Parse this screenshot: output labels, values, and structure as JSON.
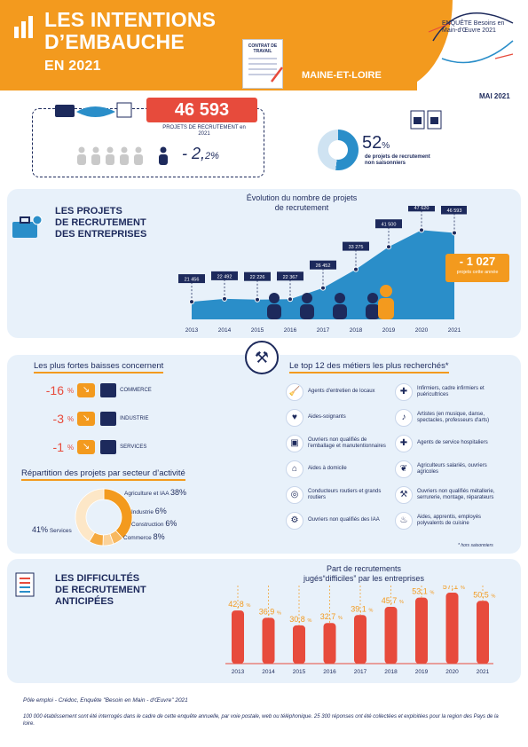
{
  "header": {
    "title_line1": "LES INTENTIONS",
    "title_line2": "D’EMBAUCHE",
    "title_line3": "EN 2021",
    "region": "MAINE-ET-LOIRE",
    "doc_label": "CONTRAT DE TRAVAIL",
    "logo_text": "ENQUÊTE Besoins en Main-d'Œuvre 2021",
    "date": "MAI 2021"
  },
  "key_figures": {
    "projects_value": "46 593",
    "projects_label": "PROJETS DE RECRUTEMENT en 2021",
    "change_prefix": "- 2,",
    "change_suffix": "2%",
    "seasonal_pct": "52",
    "seasonal_unit": "%",
    "seasonal_label_l1": "de projets de recrutement",
    "seasonal_label_l2": "non saisonniers",
    "seasonal_fraction": 0.52
  },
  "section1": {
    "title_l1": "LES PROJETS",
    "title_l2": "DE RECRUTEMENT",
    "title_l3": "DES ENTREPRISES",
    "chart_title_l1": "Évolution du nombre de projets",
    "chart_title_l2": "de recrutement",
    "delta_value": "- 1 027",
    "delta_label": "projets cette année"
  },
  "chart_data": [
    {
      "type": "line",
      "title": "Évolution du nombre de projets de recrutement",
      "categories": [
        "2013",
        "2014",
        "2015",
        "2016",
        "2017",
        "2018",
        "2019",
        "2020",
        "2021"
      ],
      "series": [
        {
          "values": [
            21456,
            22492,
            22226,
            22367,
            26452,
            33275,
            41500,
            47620,
            46593
          ]
        }
      ],
      "labels": [
        "21 456",
        "22 492",
        "22 226",
        "22 367",
        "26 452",
        "33 275",
        "41 500",
        "47 620",
        "46 593"
      ],
      "ylim": [
        15000,
        50000
      ]
    },
    {
      "type": "bar",
      "title": "Part de recrutements jugés “difficiles” par les entreprises",
      "categories": [
        "2013",
        "2014",
        "2015",
        "2016",
        "2017",
        "2018",
        "2019",
        "2020",
        "2021"
      ],
      "values": [
        42.8,
        36.9,
        30.8,
        32.7,
        39.1,
        45.7,
        53.1,
        57.1,
        50.5
      ],
      "labels": [
        "42,8",
        "36,9",
        "30,8",
        "32,7",
        "39,1",
        "45,7",
        "53,1",
        "57,1",
        "50,5"
      ],
      "unit": "%",
      "ylim": [
        0,
        60
      ]
    },
    {
      "type": "pie",
      "title": "Répartition des projets par secteur d’activité",
      "categories": [
        "Agriculture et IAA",
        "Industrie",
        "Construction",
        "Commerce",
        "Services"
      ],
      "values": [
        38,
        6,
        6,
        8,
        41
      ]
    }
  ],
  "section2": {
    "baisses_title": "Les plus fortes baisses concernent",
    "baisses": [
      {
        "pct": "-16",
        "unit": "%",
        "sector": "COMMERCE"
      },
      {
        "pct": "-3",
        "unit": "%",
        "sector": "INDUSTRIE"
      },
      {
        "pct": "-1",
        "unit": "%",
        "sector": "SERVICES"
      }
    ],
    "pie_title": "Répartition des projets par secteur d’activité",
    "pie_labels": [
      {
        "name": "Agriculture et IAA",
        "pct": "38%"
      },
      {
        "name": "Industrie",
        "pct": "6%"
      },
      {
        "name": "Construction",
        "pct": "6%"
      },
      {
        "name": "Commerce",
        "pct": "8%"
      },
      {
        "name": "Services",
        "pct": "41%"
      }
    ],
    "top_title": "Le top 12 des métiers les plus recherchés*",
    "jobs_left": [
      {
        "label": "Agents d'entretien de locaux",
        "icon": "🧹"
      },
      {
        "label": "Aides-soignants",
        "icon": "♥"
      },
      {
        "label": "Ouvriers non qualifiés de l'emballage et manutentionnaires",
        "icon": "▣"
      },
      {
        "label": "Aides à domicile",
        "icon": "⌂"
      },
      {
        "label": "Conducteurs routiers et grands routiers",
        "icon": "◎"
      },
      {
        "label": "Ouvriers non qualifiés des IAA",
        "icon": "⚙"
      }
    ],
    "jobs_right": [
      {
        "label": "Infirmiers, cadre infirmiers et puéricultrices",
        "icon": "✚"
      },
      {
        "label": "Artistes (en musique, danse, spectacles, professeurs d'arts)",
        "icon": "♪"
      },
      {
        "label": "Agents de service hospitaliers",
        "icon": "✚"
      },
      {
        "label": "Agriculteurs salariés, ouvriers agricoles",
        "icon": "❦"
      },
      {
        "label": "Ouvriers non qualifiés métallerie, serrurerie, montage, réparateurs",
        "icon": "⚒"
      },
      {
        "label": "Aides, apprentis, employés polyvalents de cuisine",
        "icon": "♨"
      }
    ],
    "footnote": "* hors saisonniers"
  },
  "section3": {
    "title_l1": "LES DIFFICULTÉS",
    "title_l2": "DE RECRUTEMENT",
    "title_l3": "ANTICIPÉES",
    "chart_title_l1": "Part de recrutements",
    "chart_title_l2": "jugés“difficiles” par les entreprises"
  },
  "footer": {
    "source": "Pôle emploi - Crédoc, Enquête \"Besoin en Main - d'Œuvre\" 2021",
    "note": "100 000 établissement sont été interrogés dans le cadre de cette enquête annuelle, par voie postale, web ou téléphonique. 25 300 réponses ont été collectées et exploitées pour la region des Pays de la loire."
  },
  "colors": {
    "orange": "#f39a1e",
    "navy": "#1d2a5c",
    "red": "#e74b3c",
    "blue": "#2a8ec9",
    "light": "#e8f1fa"
  }
}
